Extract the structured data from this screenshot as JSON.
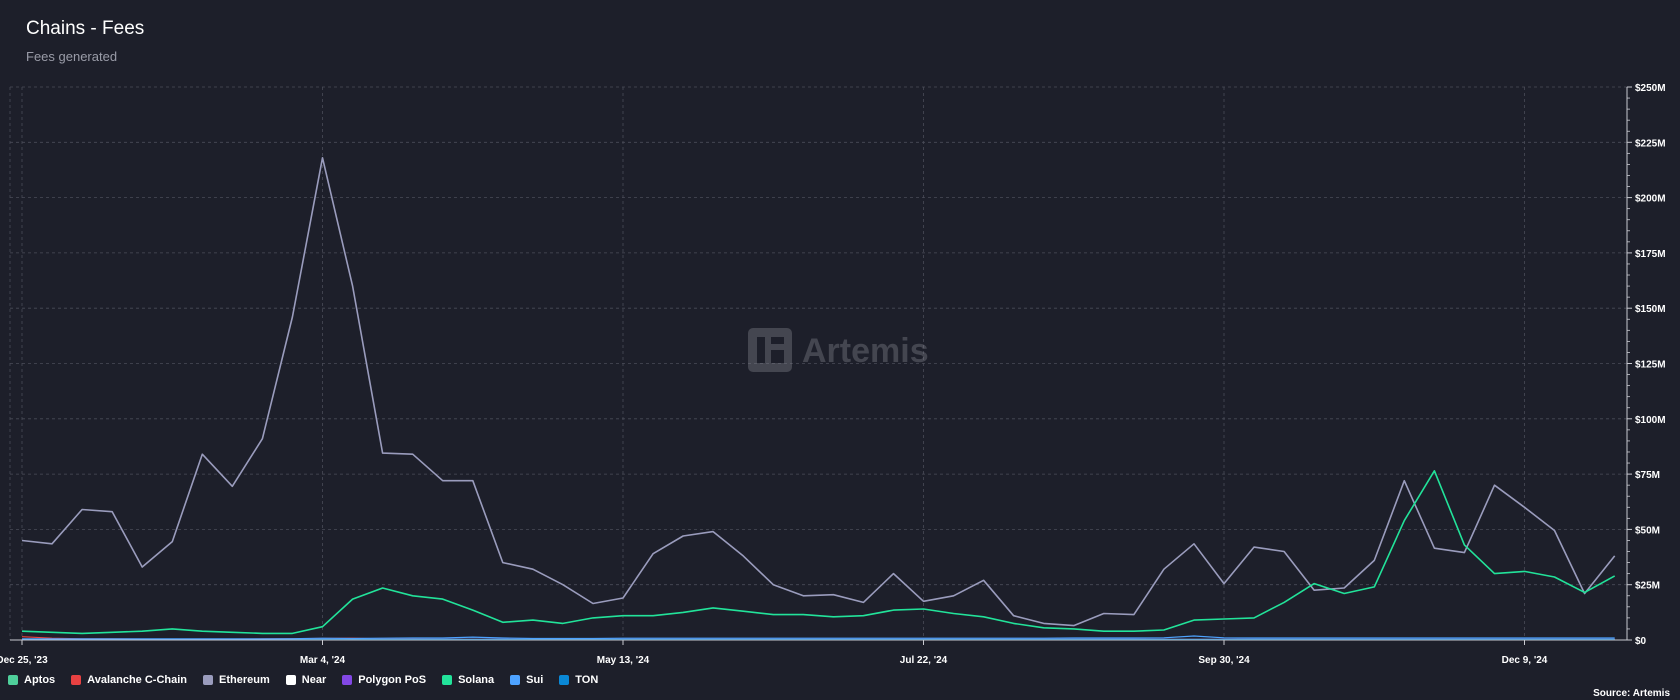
{
  "header": {
    "title": "Chains - Fees",
    "subtitle": "Fees generated"
  },
  "watermark": {
    "text": "Artemis",
    "icon": "artemis-logo-icon"
  },
  "source": "Source: Artemis",
  "colors": {
    "background": "#1d1f2a",
    "grid": "#4a4c58",
    "axis": "#c8c9d0",
    "Aptos": "#4fcf9b",
    "Avalanche C-Chain": "#e84142",
    "Ethereum": "#9a9cbd",
    "Near": "#ffffff",
    "Polygon PoS": "#8247e5",
    "Solana": "#22e39a",
    "Sui": "#4da2ff",
    "TON": "#0a88d6"
  },
  "chart_data": {
    "type": "line",
    "title": "Chains - Fees",
    "subtitle": "Fees generated",
    "xlabel": "",
    "ylabel": "",
    "ylim": [
      0,
      250000000
    ],
    "y_unit": "USD",
    "grid": true,
    "legend_position": "bottom-left",
    "x_tick_labels": [
      "Dec 25, '23",
      "Mar 4, '24",
      "May 13, '24",
      "Jul 22, '24",
      "Sep 30, '24",
      "Dec 9, '24"
    ],
    "x_tick_index": [
      0,
      10,
      20,
      30,
      40,
      50
    ],
    "y_tick_values": [
      0,
      25000000,
      50000000,
      75000000,
      100000000,
      125000000,
      150000000,
      175000000,
      200000000,
      225000000,
      250000000
    ],
    "y_tick_labels": [
      "$0",
      "$25M",
      "$50M",
      "$75M",
      "$100M",
      "$125M",
      "$150M",
      "$175M",
      "$200M",
      "$225M",
      "$250M"
    ],
    "x_start": "2023-12-25",
    "x_interval": "weekly",
    "series": [
      {
        "name": "Ethereum",
        "values": [
          45,
          43.5,
          59,
          58,
          33,
          44.5,
          84,
          69.5,
          91,
          146,
          218,
          160,
          84.5,
          84,
          72,
          72,
          35,
          32,
          25,
          16.5,
          19,
          39,
          47,
          49,
          38,
          25,
          20,
          20.5,
          17,
          30,
          17.5,
          20,
          27,
          11,
          7.5,
          6.5,
          12,
          11.5,
          32,
          43.5,
          25.5,
          42,
          40,
          22.5,
          23.5,
          36,
          72,
          41.5,
          39.5,
          70,
          60,
          49.5,
          21,
          38
        ]
      },
      {
        "name": "Solana",
        "values": [
          4,
          3.5,
          3,
          3.5,
          4,
          5,
          4,
          3.5,
          3,
          3,
          6,
          18.5,
          23.5,
          20,
          18.5,
          13.5,
          8,
          9,
          7.5,
          10,
          11,
          11,
          12.5,
          14.5,
          13,
          11.5,
          11.5,
          10.5,
          11,
          13.5,
          14,
          12,
          10.5,
          7.5,
          5.5,
          5,
          4,
          4,
          4.5,
          9,
          9.5,
          10,
          17,
          25.5,
          21,
          24,
          54,
          76.5,
          43,
          30,
          31,
          28.5,
          21.5,
          29
        ]
      },
      {
        "name": "Sui",
        "values": [
          0.5,
          0.5,
          0.5,
          0.5,
          0.5,
          0.5,
          0.5,
          0.5,
          0.5,
          0.6,
          0.8,
          0.7,
          0.8,
          0.9,
          0.9,
          1.3,
          0.9,
          0.7,
          0.7,
          0.7,
          0.8,
          0.8,
          0.8,
          0.8,
          0.8,
          0.8,
          0.8,
          0.8,
          0.8,
          0.8,
          0.8,
          0.8,
          0.8,
          0.8,
          0.8,
          0.9,
          0.9,
          0.9,
          1.0,
          1.8,
          1.0,
          0.9,
          0.9,
          0.9,
          0.9,
          0.9,
          0.9,
          0.9,
          0.9,
          0.9,
          0.9,
          0.9,
          0.9,
          0.9
        ]
      },
      {
        "name": "TON",
        "values": [
          0.2,
          0.2,
          0.2,
          0.2,
          0.2,
          0.2,
          0.2,
          0.2,
          0.2,
          0.2,
          0.3,
          0.3,
          0.3,
          0.3,
          0.3,
          0.3,
          0.3,
          0.3,
          0.3,
          0.3,
          0.3,
          0.3,
          0.3,
          0.3,
          0.3,
          0.3,
          0.3,
          0.3,
          0.3,
          0.3,
          0.3,
          0.3,
          0.3,
          0.3,
          0.3,
          0.3,
          0.3,
          0.3,
          0.3,
          0.3,
          0.3,
          0.3,
          0.3,
          0.3,
          0.3,
          0.3,
          0.3,
          0.3,
          0.3,
          0.3,
          0.3,
          0.3,
          0.3,
          0.3
        ]
      },
      {
        "name": "Avalanche C-Chain",
        "values": [
          1.5,
          0.8,
          0.5,
          0.5,
          0.4,
          0.4,
          0.4,
          0.4,
          0.5,
          0.6,
          0.7,
          0.8,
          0.5,
          0.4,
          0.3,
          0.3,
          0.3,
          0.3,
          0.3,
          0.3,
          0.3,
          0.3,
          0.3,
          0.3,
          0.3,
          0.3,
          0.3,
          0.3,
          0.3,
          0.3,
          0.3,
          0.3,
          0.3,
          0.3,
          0.3,
          0.3,
          0.3,
          0.3,
          0.3,
          0.3,
          0.3,
          0.3,
          0.3,
          0.3,
          0.3,
          0.3,
          0.3,
          0.3,
          0.3,
          0.3,
          0.3,
          0.3,
          0.3,
          0.3
        ]
      },
      {
        "name": "Polygon PoS",
        "values": [
          0.3,
          0.3,
          0.3,
          0.3,
          0.3,
          0.3,
          0.3,
          0.3,
          0.3,
          0.4,
          0.6,
          0.6,
          0.4,
          0.3,
          0.3,
          0.3,
          0.3,
          0.3,
          0.3,
          0.3,
          0.3,
          0.3,
          0.3,
          0.3,
          0.3,
          0.3,
          0.3,
          0.3,
          0.3,
          0.3,
          0.3,
          0.3,
          0.3,
          0.3,
          0.3,
          0.3,
          0.3,
          0.3,
          0.3,
          0.3,
          0.3,
          0.3,
          0.3,
          0.3,
          0.3,
          0.3,
          0.3,
          0.3,
          0.3,
          0.3,
          0.3,
          0.3,
          0.3,
          0.3
        ]
      },
      {
        "name": "Near",
        "values": [
          0.1,
          0.1,
          0.1,
          0.1,
          0.1,
          0.1,
          0.1,
          0.1,
          0.1,
          0.1,
          0.1,
          0.1,
          0.1,
          0.1,
          0.1,
          0.1,
          0.1,
          0.1,
          0.1,
          0.1,
          0.1,
          0.1,
          0.1,
          0.1,
          0.1,
          0.1,
          0.1,
          0.1,
          0.1,
          0.1,
          0.1,
          0.1,
          0.1,
          0.1,
          0.1,
          0.1,
          0.1,
          0.1,
          0.1,
          0.1,
          0.1,
          0.1,
          0.1,
          0.1,
          0.1,
          0.1,
          0.1,
          0.1,
          0.1,
          0.1,
          0.1,
          0.1,
          0.1,
          0.1
        ]
      },
      {
        "name": "Aptos",
        "values": [
          0.05,
          0.05,
          0.05,
          0.05,
          0.05,
          0.05,
          0.05,
          0.05,
          0.05,
          0.05,
          0.05,
          0.05,
          0.05,
          0.05,
          0.05,
          0.05,
          0.05,
          0.05,
          0.05,
          0.05,
          0.05,
          0.05,
          0.05,
          0.05,
          0.05,
          0.05,
          0.05,
          0.05,
          0.05,
          0.05,
          0.05,
          0.05,
          0.05,
          0.05,
          0.05,
          0.05,
          0.05,
          0.05,
          0.05,
          0.05,
          0.05,
          0.05,
          0.05,
          0.05,
          0.05,
          0.05,
          0.05,
          0.05,
          0.05,
          0.05,
          0.05,
          0.05,
          0.05,
          0.05
        ]
      }
    ],
    "values_unit": "millions USD",
    "legend": [
      "Aptos",
      "Avalanche C-Chain",
      "Ethereum",
      "Near",
      "Polygon PoS",
      "Solana",
      "Sui",
      "TON"
    ]
  }
}
